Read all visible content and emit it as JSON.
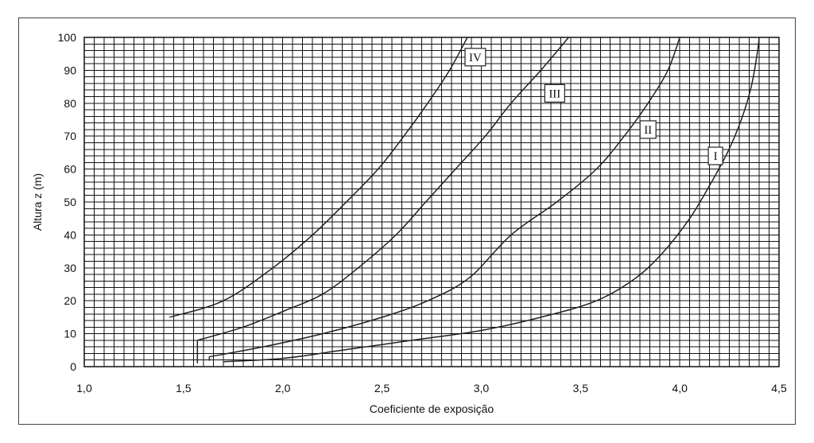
{
  "chart_data": {
    "type": "line",
    "title": "",
    "xlabel": "Coeficiente de exposição",
    "ylabel": "Altura z (m)",
    "xlim": [
      1.0,
      4.5
    ],
    "ylim": [
      0,
      100
    ],
    "grid": true,
    "x_minor_step": 0.05,
    "y_minor_step": 2,
    "x_ticks": [
      1.0,
      1.5,
      2.0,
      2.5,
      3.0,
      3.5,
      4.0,
      4.5
    ],
    "x_tick_labels": [
      "1,0",
      "1,5",
      "2,0",
      "2,5",
      "3,0",
      "3,5",
      "4,0",
      "4,5"
    ],
    "y_ticks": [
      0,
      10,
      20,
      30,
      40,
      50,
      60,
      70,
      80,
      90,
      100
    ],
    "y_tick_labels": [
      "0",
      "10",
      "20",
      "30",
      "40",
      "50",
      "60",
      "70",
      "80",
      "90",
      "100"
    ],
    "series": [
      {
        "name": "IV",
        "label": "IV",
        "label_at": [
          2.97,
          94
        ],
        "points": [
          [
            1.43,
            15
          ],
          [
            1.7,
            20
          ],
          [
            1.95,
            30
          ],
          [
            2.15,
            40
          ],
          [
            2.32,
            50
          ],
          [
            2.48,
            60
          ],
          [
            2.61,
            70
          ],
          [
            2.73,
            80
          ],
          [
            2.84,
            90
          ],
          [
            2.93,
            100
          ]
        ],
        "drop": null
      },
      {
        "name": "III",
        "label": "III",
        "label_at": [
          3.37,
          83
        ],
        "points": [
          [
            1.57,
            8
          ],
          [
            1.8,
            12
          ],
          [
            2.01,
            17
          ],
          [
            2.2,
            22
          ],
          [
            2.38,
            30
          ],
          [
            2.57,
            40
          ],
          [
            2.72,
            50
          ],
          [
            2.87,
            60
          ],
          [
            3.02,
            70
          ],
          [
            3.15,
            80
          ],
          [
            3.3,
            90
          ],
          [
            3.44,
            100
          ]
        ],
        "drop": [
          1.57,
          8,
          1.0
        ]
      },
      {
        "name": "II",
        "label": "II",
        "label_at": [
          3.84,
          72
        ],
        "points": [
          [
            1.63,
            3
          ],
          [
            1.9,
            6
          ],
          [
            2.2,
            10
          ],
          [
            2.5,
            15
          ],
          [
            2.73,
            20
          ],
          [
            2.94,
            27
          ],
          [
            3.15,
            40
          ],
          [
            3.38,
            50
          ],
          [
            3.58,
            60
          ],
          [
            3.72,
            70
          ],
          [
            3.84,
            80
          ],
          [
            3.94,
            90
          ],
          [
            4.0,
            100
          ]
        ],
        "drop": [
          1.63,
          3,
          1.8
        ]
      },
      {
        "name": "I",
        "label": "I",
        "label_at": [
          4.18,
          64
        ],
        "points": [
          [
            1.7,
            1.5
          ],
          [
            2.0,
            2.5
          ],
          [
            2.3,
            5
          ],
          [
            2.65,
            8
          ],
          [
            3.0,
            11
          ],
          [
            3.3,
            15
          ],
          [
            3.58,
            20
          ],
          [
            3.78,
            27
          ],
          [
            3.92,
            35
          ],
          [
            4.05,
            45
          ],
          [
            4.15,
            55
          ],
          [
            4.24,
            65
          ],
          [
            4.31,
            75
          ],
          [
            4.36,
            85
          ],
          [
            4.39,
            95
          ],
          [
            4.4,
            100
          ]
        ],
        "drop": null
      }
    ],
    "colors": {
      "grid": "#111111",
      "line": "#222222",
      "text": "#111111"
    }
  }
}
